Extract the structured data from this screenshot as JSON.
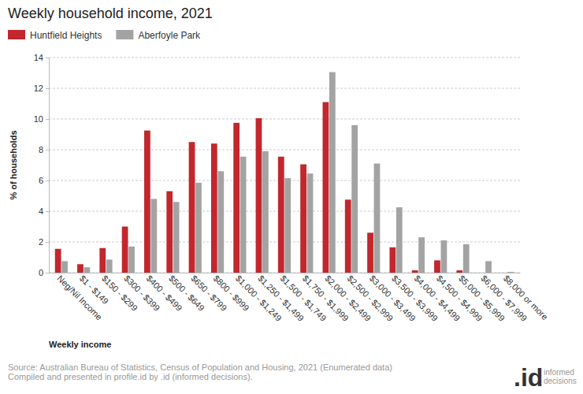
{
  "chart_data": {
    "type": "bar",
    "title": "Weekly household income, 2021",
    "x_label": "Weekly income",
    "y_label": "% of households",
    "categories": [
      "Neg/Nil Income",
      "$1 - $149",
      "$150 - $299",
      "$300 - $399",
      "$400 - $499",
      "$500 - $649",
      "$650 - $799",
      "$800 - $999",
      "$1,000 - $1,249",
      "$1,250 - $1,499",
      "$1,500 - $1,749",
      "$1,750 - $1,999",
      "$2,000 - $2,499",
      "$2,500 - $2,999",
      "$3,000 - $3,499",
      "$3,500 - $3,999",
      "$4,000 - $4,499",
      "$4,500 - $4,999",
      "$5,000 - $5,999",
      "$6,000 - $7,999",
      "$8,000 or more"
    ],
    "series": [
      {
        "name": "Huntfield Heights",
        "color": "#c1272d",
        "values": [
          1.55,
          0.55,
          1.6,
          3.0,
          9.25,
          5.3,
          8.5,
          8.4,
          9.75,
          10.05,
          7.55,
          7.05,
          11.1,
          4.75,
          2.6,
          1.65,
          0.15,
          0.8,
          0.15,
          0,
          0
        ]
      },
      {
        "name": "Aberfoyle Park",
        "color": "#a3a3a3",
        "values": [
          0.75,
          0.35,
          0.85,
          1.7,
          4.8,
          4.6,
          5.85,
          6.6,
          7.55,
          7.9,
          6.15,
          6.45,
          13.05,
          9.6,
          7.1,
          4.25,
          2.3,
          2.1,
          1.85,
          0.75,
          0.05
        ]
      }
    ],
    "ylim": [
      0,
      14
    ],
    "yticks": [
      0,
      2,
      4,
      6,
      8,
      10,
      12,
      14
    ],
    "grid": true,
    "legend": "top-left",
    "source": [
      "Source: Australian Bureau of Statistics, Census of Population and Housing, 2021 (Enumerated data)",
      "Compiled and presented in profile.id by .id (informed decisions)."
    ],
    "logo": {
      "text": ".id",
      "subtext": [
        "informed",
        "decisions"
      ]
    }
  }
}
